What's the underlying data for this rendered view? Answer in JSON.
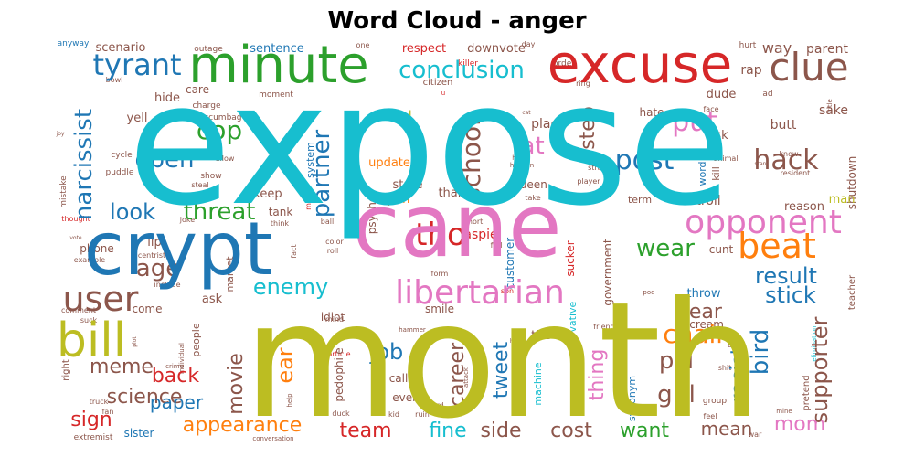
{
  "chart_data": {
    "type": "wordcloud",
    "title": "Word Cloud - anger",
    "words": [
      {
        "text": "expose",
        "weight": 100,
        "color": "#17becf"
      },
      {
        "text": "month",
        "weight": 98,
        "color": "#bcbd22"
      },
      {
        "text": "cane",
        "weight": 70,
        "color": "#e377c2"
      },
      {
        "text": "crypt",
        "weight": 62,
        "color": "#1f77b4"
      },
      {
        "text": "excuse",
        "weight": 48,
        "color": "#d62728"
      },
      {
        "text": "minute",
        "weight": 46,
        "color": "#2ca02c"
      },
      {
        "text": "libertarian",
        "weight": 30,
        "color": "#e377c2"
      },
      {
        "text": "opponent",
        "weight": 30,
        "color": "#e377c2"
      },
      {
        "text": "bill",
        "weight": 40,
        "color": "#bcbd22"
      },
      {
        "text": "clue",
        "weight": 34,
        "color": "#8c564b"
      },
      {
        "text": "beat",
        "weight": 32,
        "color": "#ff7f0e"
      },
      {
        "text": "user",
        "weight": 32,
        "color": "#8c564b"
      },
      {
        "text": "tho",
        "weight": 30,
        "color": "#d62728"
      },
      {
        "text": "tyrant",
        "weight": 26,
        "color": "#1f77b4"
      },
      {
        "text": "conclusion",
        "weight": 22,
        "color": "#17becf"
      },
      {
        "text": "narcissist",
        "weight": 22,
        "color": "#1f77b4"
      },
      {
        "text": "partner",
        "weight": 22,
        "color": "#1f77b4"
      },
      {
        "text": "school",
        "weight": 22,
        "color": "#8c564b"
      },
      {
        "text": "put",
        "weight": 24,
        "color": "#e377c2"
      },
      {
        "text": "fat",
        "weight": 22,
        "color": "#e377c2"
      },
      {
        "text": "hack",
        "weight": 24,
        "color": "#8c564b"
      },
      {
        "text": "post",
        "weight": 24,
        "color": "#1f77b4"
      },
      {
        "text": "cop",
        "weight": 22,
        "color": "#2ca02c"
      },
      {
        "text": "open",
        "weight": 22,
        "color": "#1f77b4"
      },
      {
        "text": "threat",
        "weight": 22,
        "color": "#2ca02c"
      },
      {
        "text": "look",
        "weight": 22,
        "color": "#1f77b4"
      },
      {
        "text": "age",
        "weight": 22,
        "color": "#8c564b"
      },
      {
        "text": "enemy",
        "weight": 20,
        "color": "#17becf"
      },
      {
        "text": "wear",
        "weight": 20,
        "color": "#2ca02c"
      },
      {
        "text": "result",
        "weight": 20,
        "color": "#1f77b4"
      },
      {
        "text": "stick",
        "weight": 20,
        "color": "#1f77b4"
      },
      {
        "text": "job",
        "weight": 20,
        "color": "#1f77b4"
      },
      {
        "text": "chair",
        "weight": 20,
        "color": "#ff7f0e"
      },
      {
        "text": "pill",
        "weight": 20,
        "color": "#8c564b"
      },
      {
        "text": "girl",
        "weight": 20,
        "color": "#8c564b"
      },
      {
        "text": "bird",
        "weight": 20,
        "color": "#1f77b4"
      },
      {
        "text": "supporter",
        "weight": 20,
        "color": "#8c564b"
      },
      {
        "text": "racist",
        "weight": 18,
        "color": "#1f77b4"
      },
      {
        "text": "step",
        "weight": 18,
        "color": "#8c564b"
      },
      {
        "text": "ear",
        "weight": 20,
        "color": "#ff7f0e"
      },
      {
        "text": "movie",
        "weight": 18,
        "color": "#8c564b"
      },
      {
        "text": "career",
        "weight": 18,
        "color": "#8c564b"
      },
      {
        "text": "tweet",
        "weight": 18,
        "color": "#1f77b4"
      },
      {
        "text": "thing",
        "weight": 18,
        "color": "#e377c2"
      },
      {
        "text": "fear",
        "weight": 18,
        "color": "#8c564b"
      },
      {
        "text": "meme",
        "weight": 18,
        "color": "#8c564b"
      },
      {
        "text": "back",
        "weight": 18,
        "color": "#d62728"
      },
      {
        "text": "science",
        "weight": 18,
        "color": "#8c564b"
      },
      {
        "text": "paper",
        "weight": 18,
        "color": "#1f77b4"
      },
      {
        "text": "sign",
        "weight": 18,
        "color": "#d62728"
      },
      {
        "text": "appearance",
        "weight": 18,
        "color": "#ff7f0e"
      },
      {
        "text": "team",
        "weight": 18,
        "color": "#d62728"
      },
      {
        "text": "fine",
        "weight": 18,
        "color": "#17becf"
      },
      {
        "text": "side",
        "weight": 18,
        "color": "#8c564b"
      },
      {
        "text": "cost",
        "weight": 18,
        "color": "#8c564b"
      },
      {
        "text": "want",
        "weight": 18,
        "color": "#2ca02c"
      },
      {
        "text": "mean",
        "weight": 18,
        "color": "#8c564b"
      },
      {
        "text": "mom",
        "weight": 18,
        "color": "#e377c2"
      },
      {
        "text": "way",
        "weight": 16,
        "color": "#8c564b"
      },
      {
        "text": "rap",
        "weight": 14,
        "color": "#8c564b"
      },
      {
        "text": "parent",
        "weight": 13,
        "color": "#8c564b"
      },
      {
        "text": "sake",
        "weight": 13,
        "color": "#8c564b"
      },
      {
        "text": "butt",
        "weight": 13,
        "color": "#8c564b"
      },
      {
        "text": "dude",
        "weight": 12,
        "color": "#8c564b"
      },
      {
        "text": "risk",
        "weight": 12,
        "color": "#8c564b"
      },
      {
        "text": "hate",
        "weight": 11,
        "color": "#8c564b"
      },
      {
        "text": "troll",
        "weight": 12,
        "color": "#8c564b"
      },
      {
        "text": "man",
        "weight": 12,
        "color": "#bcbd22"
      },
      {
        "text": "reason",
        "weight": 12,
        "color": "#8c564b"
      },
      {
        "text": "respect",
        "weight": 12,
        "color": "#d62728"
      },
      {
        "text": "downvote",
        "weight": 12,
        "color": "#8c564b"
      },
      {
        "text": "scenario",
        "weight": 12,
        "color": "#8c564b"
      },
      {
        "text": "sentence",
        "weight": 12,
        "color": "#1f77b4"
      },
      {
        "text": "hide",
        "weight": 12,
        "color": "#8c564b"
      },
      {
        "text": "care",
        "weight": 12,
        "color": "#8c564b"
      },
      {
        "text": "yell",
        "weight": 12,
        "color": "#8c564b"
      },
      {
        "text": "pl",
        "weight": 13,
        "color": "#bcbd22"
      },
      {
        "text": "update",
        "weight": 12,
        "color": "#ff7f0e"
      },
      {
        "text": "place",
        "weight": 13,
        "color": "#8c564b"
      },
      {
        "text": "state",
        "weight": 12,
        "color": "#8c564b"
      },
      {
        "text": "pun",
        "weight": 12,
        "color": "#ff7f0e"
      },
      {
        "text": "queen",
        "weight": 12,
        "color": "#8c564b"
      },
      {
        "text": "keep",
        "weight": 12,
        "color": "#8c564b"
      },
      {
        "text": "tank",
        "weight": 12,
        "color": "#8c564b"
      },
      {
        "text": "thank",
        "weight": 12,
        "color": "#8c564b"
      },
      {
        "text": "system",
        "weight": 10,
        "color": "#1f77b4"
      },
      {
        "text": "psycho",
        "weight": 11,
        "color": "#8c564b"
      },
      {
        "text": "aspie",
        "weight": 12,
        "color": "#d62728"
      },
      {
        "text": "sucker",
        "weight": 11,
        "color": "#d62728"
      },
      {
        "text": "government",
        "weight": 10,
        "color": "#8c564b"
      },
      {
        "text": "idiot",
        "weight": 11,
        "color": "#8c564b"
      },
      {
        "text": "customer",
        "weight": 11,
        "color": "#1f77b4"
      },
      {
        "text": "phone",
        "weight": 12,
        "color": "#8c564b"
      },
      {
        "text": "lip",
        "weight": 12,
        "color": "#8c564b"
      },
      {
        "text": "market",
        "weight": 10,
        "color": "#8c564b"
      },
      {
        "text": "ask",
        "weight": 12,
        "color": "#8c564b"
      },
      {
        "text": "come",
        "weight": 11,
        "color": "#8c564b"
      },
      {
        "text": "smile",
        "weight": 11,
        "color": "#8c564b"
      },
      {
        "text": "people",
        "weight": 11,
        "color": "#8c564b"
      },
      {
        "text": "pedophile",
        "weight": 11,
        "color": "#8c564b"
      },
      {
        "text": "call",
        "weight": 11,
        "color": "#8c564b"
      },
      {
        "text": "even",
        "weight": 11,
        "color": "#8c564b"
      },
      {
        "text": "tire",
        "weight": 12,
        "color": "#8c564b"
      },
      {
        "text": "conservative",
        "weight": 10,
        "color": "#17becf"
      },
      {
        "text": "machine",
        "weight": 10,
        "color": "#17becf"
      },
      {
        "text": "synonym",
        "weight": 10,
        "color": "#1f77b4"
      },
      {
        "text": "throw",
        "weight": 12,
        "color": "#1f77b4"
      },
      {
        "text": "scream",
        "weight": 11,
        "color": "#8c564b"
      },
      {
        "text": "cunt",
        "weight": 11,
        "color": "#8c564b"
      },
      {
        "text": "shutdown",
        "weight": 10,
        "color": "#8c564b"
      },
      {
        "text": "word",
        "weight": 10,
        "color": "#1f77b4"
      },
      {
        "text": "kill",
        "weight": 10,
        "color": "#8c564b"
      },
      {
        "text": "term",
        "weight": 10,
        "color": "#8c564b"
      },
      {
        "text": "teacher",
        "weight": 9,
        "color": "#8c564b"
      },
      {
        "text": "pretend",
        "weight": 9,
        "color": "#8c564b"
      },
      {
        "text": "group",
        "weight": 9,
        "color": "#8c564b"
      },
      {
        "text": "right",
        "weight": 10,
        "color": "#8c564b"
      },
      {
        "text": "sister",
        "weight": 11,
        "color": "#1f77b4"
      },
      {
        "text": "extremist",
        "weight": 9,
        "color": "#8c564b"
      },
      {
        "text": "outage",
        "weight": 9,
        "color": "#8c564b"
      },
      {
        "text": "anyway",
        "weight": 9,
        "color": "#1f77b4"
      },
      {
        "text": "charge",
        "weight": 9,
        "color": "#8c564b"
      },
      {
        "text": "scumbag",
        "weight": 9,
        "color": "#8c564b"
      },
      {
        "text": "moment",
        "weight": 9,
        "color": "#8c564b"
      },
      {
        "text": "citizen",
        "weight": 10,
        "color": "#8c564b"
      },
      {
        "text": "killer",
        "weight": 9,
        "color": "#d62728"
      },
      {
        "text": "order",
        "weight": 9,
        "color": "#8c564b"
      },
      {
        "text": "ring",
        "weight": 8,
        "color": "#8c564b"
      },
      {
        "text": "hurt",
        "weight": 9,
        "color": "#8c564b"
      },
      {
        "text": "face",
        "weight": 8,
        "color": "#8c564b"
      },
      {
        "text": "ad",
        "weight": 9,
        "color": "#8c564b"
      },
      {
        "text": "title",
        "weight": 7,
        "color": "#8c564b"
      },
      {
        "text": "know",
        "weight": 8,
        "color": "#8c564b"
      },
      {
        "text": "resident",
        "weight": 8,
        "color": "#8c564b"
      },
      {
        "text": "animal",
        "weight": 8,
        "color": "#8c564b"
      },
      {
        "text": "player",
        "weight": 8,
        "color": "#8c564b"
      },
      {
        "text": "stranger",
        "weight": 8,
        "color": "#8c564b"
      },
      {
        "text": "prick",
        "weight": 8,
        "color": "#8c564b"
      },
      {
        "text": "take",
        "weight": 8,
        "color": "#8c564b"
      },
      {
        "text": "cycle",
        "weight": 9,
        "color": "#8c564b"
      },
      {
        "text": "allow",
        "weight": 8,
        "color": "#8c564b"
      },
      {
        "text": "puddle",
        "weight": 9,
        "color": "#8c564b"
      },
      {
        "text": "show",
        "weight": 9,
        "color": "#8c564b"
      },
      {
        "text": "steal",
        "weight": 8,
        "color": "#8c564b"
      },
      {
        "text": "need",
        "weight": 8,
        "color": "#8c564b"
      },
      {
        "text": "mistake",
        "weight": 9,
        "color": "#8c564b"
      },
      {
        "text": "thought",
        "weight": 8,
        "color": "#d62728"
      },
      {
        "text": "joke",
        "weight": 8,
        "color": "#8c564b"
      },
      {
        "text": "think",
        "weight": 8,
        "color": "#8c564b"
      },
      {
        "text": "ball",
        "weight": 8,
        "color": "#8c564b"
      },
      {
        "text": "moron",
        "weight": 8,
        "color": "#d62728"
      },
      {
        "text": "fact",
        "weight": 8,
        "color": "#8c564b"
      },
      {
        "text": "color",
        "weight": 8,
        "color": "#8c564b"
      },
      {
        "text": "roll",
        "weight": 8,
        "color": "#8c564b"
      },
      {
        "text": "short",
        "weight": 8,
        "color": "#8c564b"
      },
      {
        "text": "fed",
        "weight": 8,
        "color": "#8c564b"
      },
      {
        "text": "form",
        "weight": 8,
        "color": "#8c564b"
      },
      {
        "text": "son",
        "weight": 8,
        "color": "#d62728"
      },
      {
        "text": "pod",
        "weight": 7,
        "color": "#8c564b"
      },
      {
        "text": "article",
        "weight": 8,
        "color": "#d62728"
      },
      {
        "text": "mind",
        "weight": 8,
        "color": "#8c564b"
      },
      {
        "text": "hammer",
        "weight": 7,
        "color": "#8c564b"
      },
      {
        "text": "attack",
        "weight": 7,
        "color": "#8c564b"
      },
      {
        "text": "guard",
        "weight": 8,
        "color": "#8c564b"
      },
      {
        "text": "ruin",
        "weight": 8,
        "color": "#8c564b"
      },
      {
        "text": "kid",
        "weight": 8,
        "color": "#8c564b"
      },
      {
        "text": "duck",
        "weight": 8,
        "color": "#8c564b"
      },
      {
        "text": "book",
        "weight": 8,
        "color": "#8c564b"
      },
      {
        "text": "friend",
        "weight": 8,
        "color": "#8c564b"
      },
      {
        "text": "bear",
        "weight": 8,
        "color": "#8c564b"
      },
      {
        "text": "shit",
        "weight": 8,
        "color": "#8c564b"
      },
      {
        "text": "feel",
        "weight": 8,
        "color": "#8c564b"
      },
      {
        "text": "war",
        "weight": 8,
        "color": "#8c564b"
      },
      {
        "text": "elimination",
        "weight": 7,
        "color": "#17becf"
      },
      {
        "text": "example",
        "weight": 8,
        "color": "#8c564b"
      },
      {
        "text": "include",
        "weight": 8,
        "color": "#8c564b"
      },
      {
        "text": "centrist",
        "weight": 8,
        "color": "#8c564b"
      },
      {
        "text": "comment",
        "weight": 8,
        "color": "#8c564b"
      },
      {
        "text": "suck",
        "weight": 8,
        "color": "#8c564b"
      },
      {
        "text": "individual",
        "weight": 7,
        "color": "#8c564b"
      },
      {
        "text": "crime",
        "weight": 7,
        "color": "#8c564b"
      },
      {
        "text": "truck",
        "weight": 8,
        "color": "#8c564b"
      },
      {
        "text": "fan",
        "weight": 8,
        "color": "#8c564b"
      },
      {
        "text": "bowl",
        "weight": 8,
        "color": "#8c564b"
      },
      {
        "text": "new",
        "weight": 7,
        "color": "#bcbd22"
      },
      {
        "text": "conversation",
        "weight": 7,
        "color": "#8c564b"
      },
      {
        "text": "help",
        "weight": 7,
        "color": "#8c564b"
      },
      {
        "text": "vote",
        "weight": 6,
        "color": "#8c564b"
      },
      {
        "text": "joy",
        "weight": 6,
        "color": "#8c564b"
      },
      {
        "text": "day",
        "weight": 8,
        "color": "#8c564b"
      },
      {
        "text": "one",
        "weight": 8,
        "color": "#8c564b"
      },
      {
        "text": "mine",
        "weight": 7,
        "color": "#8c564b"
      },
      {
        "text": "happen",
        "weight": 7,
        "color": "#8c564b"
      },
      {
        "text": "hat",
        "weight": 7,
        "color": "#8c564b"
      },
      {
        "text": "cat",
        "weight": 6,
        "color": "#8c564b"
      },
      {
        "text": "plot",
        "weight": 6,
        "color": "#8c564b"
      },
      {
        "text": "hr",
        "weight": 6,
        "color": "#8c564b"
      },
      {
        "text": "stan",
        "weight": 6,
        "color": "#8c564b"
      },
      {
        "text": "u",
        "weight": 7,
        "color": "#d62728"
      }
    ]
  }
}
